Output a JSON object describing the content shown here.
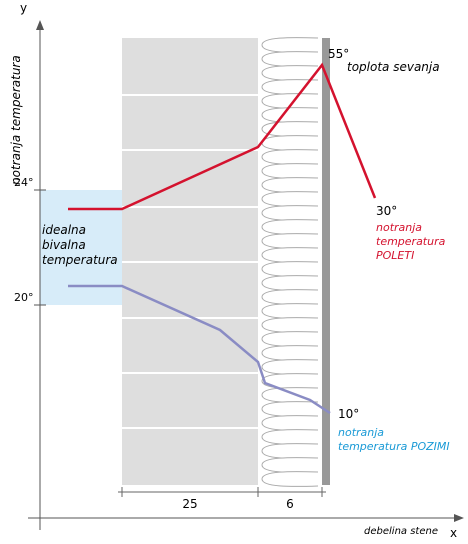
{
  "axes": {
    "y": "y",
    "x": "x",
    "y_label": "notranja temperatura",
    "x_label": "debelina stene",
    "tick_24": "24°",
    "tick_20": "20°"
  },
  "ideal": {
    "lines": [
      "idealna",
      "bivalna",
      "temperatura"
    ]
  },
  "peak": {
    "value": "55°",
    "label": "toplota sevanja"
  },
  "summer": {
    "value": "30°",
    "lines": [
      "notranja",
      "temperatura",
      "POLETI"
    ]
  },
  "winter": {
    "value": "10°",
    "lines": [
      "notranja",
      "temperatura POZIMI"
    ]
  },
  "dimensions": {
    "wall": "25",
    "insulation": "6"
  }
}
